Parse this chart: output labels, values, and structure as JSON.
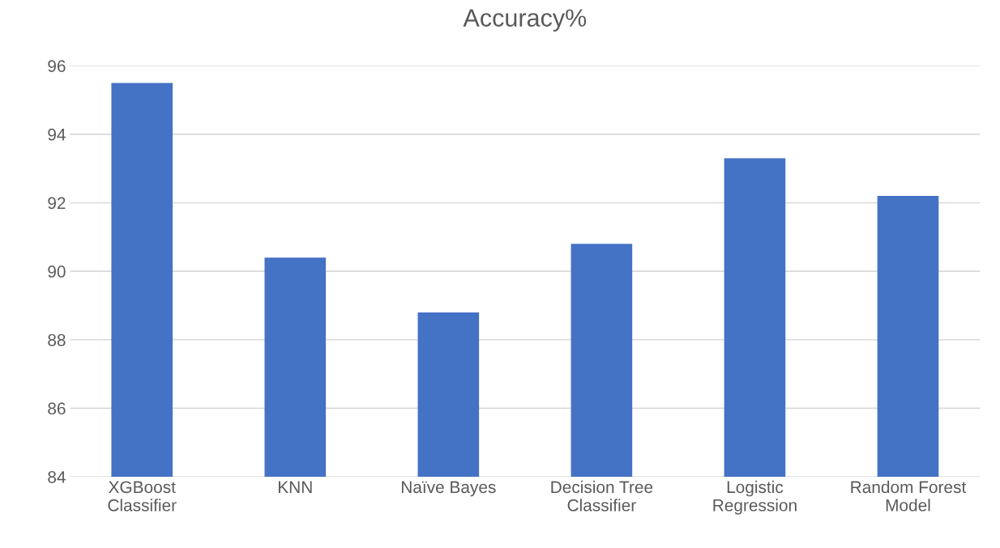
{
  "chart_data": {
    "type": "bar",
    "title": "Accuracy%",
    "categories": [
      "XGBoost\nClassifier",
      "KNN",
      "Naïve Bayes",
      "Decision Tree\nClassifier",
      "Logistic\nRegression",
      "Random Forest\nModel"
    ],
    "values": [
      95.5,
      90.4,
      88.8,
      90.8,
      93.3,
      92.2
    ],
    "color": "#4472c4",
    "ylim": [
      84,
      96
    ],
    "yticks": [
      84,
      86,
      88,
      90,
      92,
      94,
      96
    ],
    "grid": "y"
  }
}
